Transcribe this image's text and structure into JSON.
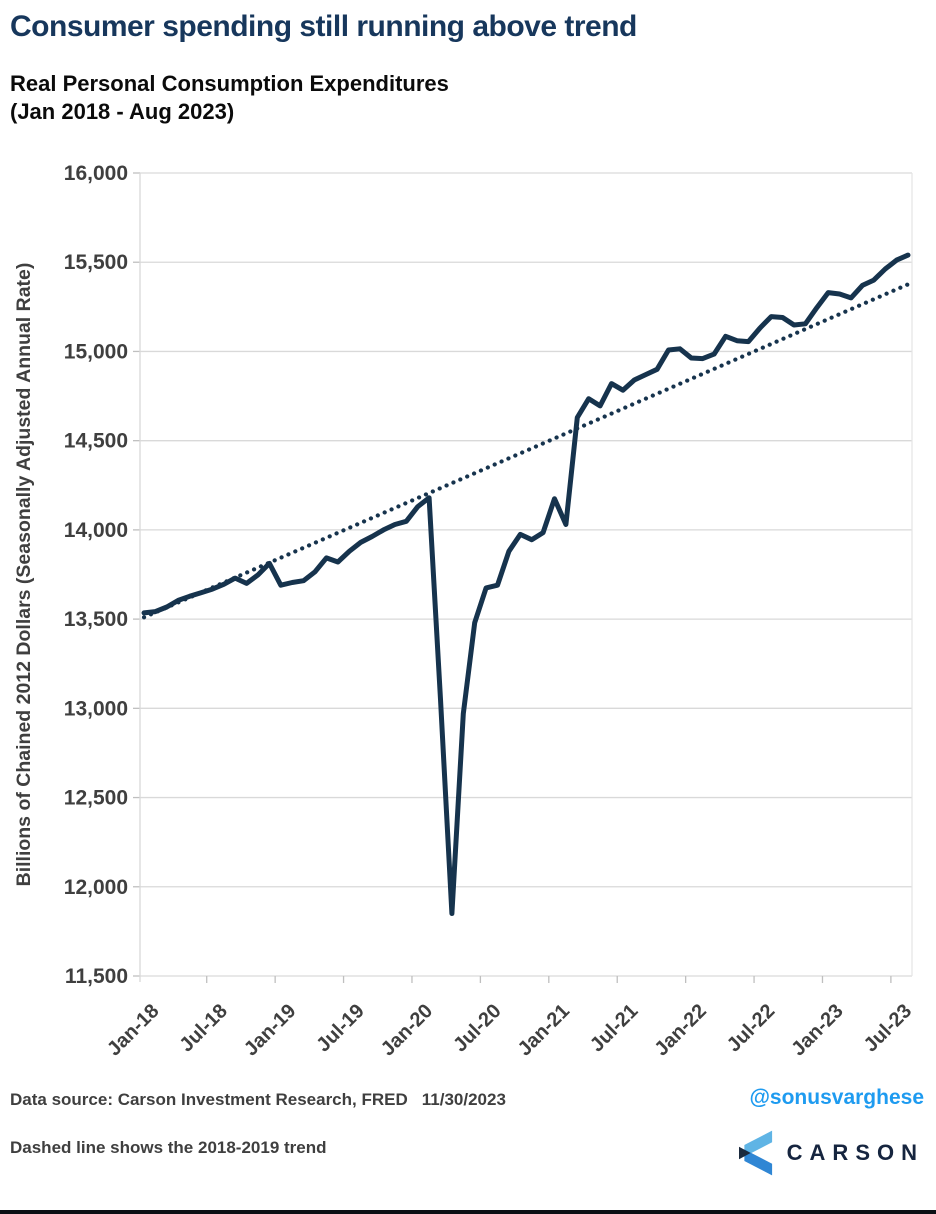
{
  "header": {
    "title": "Consumer spending still running above trend",
    "subtitle_line1": "Real Personal Consumption Expenditures",
    "subtitle_line2": "(Jan 2018 - Aug 2023)",
    "title_color": "#17375c"
  },
  "chart_data": {
    "type": "line",
    "title": "Real Personal Consumption Expenditures (Jan 2018 - Aug 2023)",
    "xlabel": "",
    "ylabel": "Billions of Chained 2012 Dollars (Seasonally Adjusted Annual Rate)",
    "ylim": [
      11500,
      16000
    ],
    "ytick_step": 500,
    "ytick_labels": [
      "11,500",
      "12,000",
      "12,500",
      "13,000",
      "13,500",
      "14,000",
      "14,500",
      "15,000",
      "15,500",
      "16,000"
    ],
    "xtick_labels": [
      "Jan-18",
      "Jul-18",
      "Jan-19",
      "Jul-19",
      "Jan-20",
      "Jul-20",
      "Jan-21",
      "Jul-21",
      "Jan-22",
      "Jul-22",
      "Jan-23",
      "Jul-23"
    ],
    "x": [
      "Jan-18",
      "Feb-18",
      "Mar-18",
      "Apr-18",
      "May-18",
      "Jun-18",
      "Jul-18",
      "Aug-18",
      "Sep-18",
      "Oct-18",
      "Nov-18",
      "Dec-18",
      "Jan-19",
      "Feb-19",
      "Mar-19",
      "Apr-19",
      "May-19",
      "Jun-19",
      "Jul-19",
      "Aug-19",
      "Sep-19",
      "Oct-19",
      "Nov-19",
      "Dec-19",
      "Jan-20",
      "Feb-20",
      "Mar-20",
      "Apr-20",
      "May-20",
      "Jun-20",
      "Jul-20",
      "Aug-20",
      "Sep-20",
      "Oct-20",
      "Nov-20",
      "Dec-20",
      "Jan-21",
      "Feb-21",
      "Mar-21",
      "Apr-21",
      "May-21",
      "Jun-21",
      "Jul-21",
      "Aug-21",
      "Sep-21",
      "Oct-21",
      "Nov-21",
      "Dec-21",
      "Jan-22",
      "Feb-22",
      "Mar-22",
      "Apr-22",
      "May-22",
      "Jun-22",
      "Jul-22",
      "Aug-22",
      "Sep-22",
      "Oct-22",
      "Nov-22",
      "Dec-22",
      "Jan-23",
      "Feb-23",
      "Mar-23",
      "Apr-23",
      "May-23",
      "Jun-23",
      "Jul-23",
      "Aug-23"
    ],
    "series": [
      {
        "name": "Real Personal Consumption Expenditures",
        "style": "solid",
        "color": "#16334d",
        "values": [
          13535,
          13542,
          13568,
          13605,
          13628,
          13648,
          13668,
          13695,
          13730,
          13700,
          13748,
          13812,
          13690,
          13705,
          13715,
          13765,
          13843,
          13820,
          13880,
          13930,
          13963,
          14000,
          14030,
          14048,
          14130,
          14180,
          13050,
          11850,
          12970,
          13480,
          13675,
          13690,
          13880,
          13975,
          13945,
          13985,
          14175,
          14030,
          14630,
          14735,
          14695,
          14820,
          14783,
          14840,
          14870,
          14900,
          15008,
          15015,
          14963,
          14960,
          14985,
          15085,
          15060,
          15055,
          15130,
          15195,
          15190,
          15148,
          15155,
          15245,
          15330,
          15322,
          15300,
          15370,
          15400,
          15462,
          15512,
          15540
        ]
      },
      {
        "name": "2018-2019 trend (dashed)",
        "style": "dotted",
        "color": "#16334d",
        "trend_start": 13510,
        "trend_end": 15376
      }
    ],
    "grid": true,
    "gridline_color": "#d9d9d9",
    "tick_color": "#bfbfbf",
    "axis_text_color": "#3f3f3f",
    "legend_position": "none"
  },
  "footer": {
    "data_source": "Data source: Carson Investment Research, FRED",
    "date": "11/30/2023",
    "note": "Dashed line shows the 2018-2019 trend",
    "handle": "@sonusvarghese",
    "handle_color": "#1e9bf0"
  },
  "logo": {
    "brand": "CARSON",
    "text_color": "#16253f",
    "mark_light_blue": "#5fb4e5",
    "mark_blue": "#2f86d4",
    "mark_navy": "#1b2a3d"
  }
}
